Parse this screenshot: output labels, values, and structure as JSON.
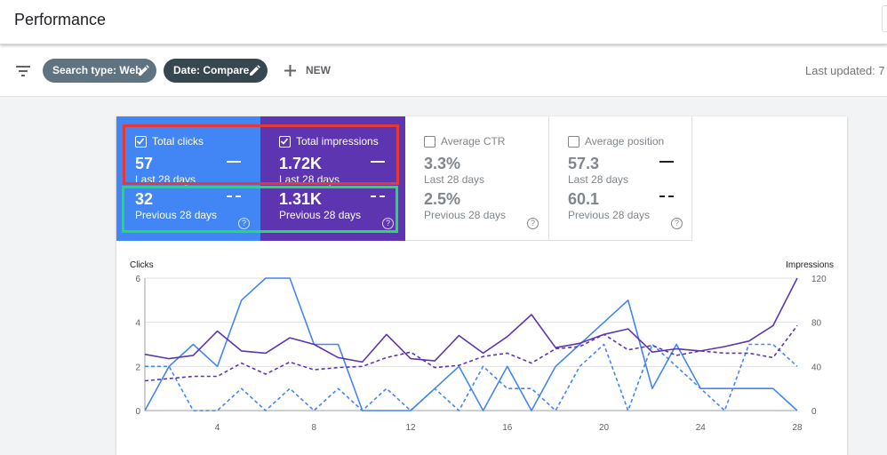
{
  "header": {
    "title": "Performance"
  },
  "filters": {
    "search_type": "Search type: Web",
    "date": "Date: Compare",
    "new_label": "NEW",
    "last_updated": "Last updated: 7"
  },
  "metrics": [
    {
      "label": "Total clicks",
      "checked": true,
      "current": "57",
      "current_period": "Last 28 days",
      "previous": "32",
      "previous_period": "Previous 28 days",
      "color": "#4285f4"
    },
    {
      "label": "Total impressions",
      "checked": true,
      "current": "1.72K",
      "current_period": "Last 28 days",
      "previous": "1.31K",
      "previous_period": "Previous 28 days",
      "color": "#5e35b1"
    },
    {
      "label": "Average CTR",
      "checked": false,
      "current": "3.3%",
      "current_period": "Last 28 days",
      "previous": "2.5%",
      "previous_period": "Previous 28 days",
      "color": "#ffffff"
    },
    {
      "label": "Average position",
      "checked": false,
      "current": "57.3",
      "current_period": "Last 28 days",
      "previous": "60.1",
      "previous_period": "Previous 28 days",
      "color": "#ffffff"
    }
  ],
  "help_glyph": "?",
  "chart_data": {
    "type": "line",
    "ylabel_left": "Clicks",
    "ylabel_right": "Impressions",
    "x": [
      1,
      2,
      3,
      4,
      5,
      6,
      7,
      8,
      9,
      10,
      11,
      12,
      13,
      14,
      15,
      16,
      17,
      18,
      19,
      20,
      21,
      22,
      23,
      24,
      25,
      26,
      27,
      28
    ],
    "x_ticks": [
      "4",
      "8",
      "12",
      "16",
      "20",
      "24",
      "28"
    ],
    "y_left_ticks": [
      "0",
      "2",
      "4",
      "6"
    ],
    "y_right_ticks": [
      "0",
      "40",
      "80",
      "120"
    ],
    "ylim_left": [
      0,
      6
    ],
    "ylim_right": [
      0,
      120
    ],
    "series": [
      {
        "name": "Total clicks",
        "axis": "left",
        "style": "solid",
        "color": "#4285f4",
        "values": [
          0,
          2,
          3,
          2,
          5,
          6,
          6,
          3,
          3,
          0,
          0,
          0,
          1,
          2,
          0,
          2,
          0,
          2,
          3,
          4,
          5,
          1,
          3,
          1,
          1,
          1,
          1,
          0
        ]
      },
      {
        "name": "Total clicks",
        "axis": "left",
        "style": "dashed",
        "color": "#4285f4",
        "values": [
          2,
          2,
          0,
          0,
          1,
          0,
          1,
          0,
          1,
          0,
          1,
          0,
          1,
          0,
          2,
          1,
          1,
          0,
          2,
          3,
          0,
          3,
          2,
          1,
          0,
          3,
          3,
          2
        ]
      },
      {
        "name": "Total impressions",
        "axis": "right",
        "style": "solid",
        "color": "#5e35b1",
        "values": [
          51,
          47,
          50,
          72,
          54,
          52,
          66,
          60,
          48,
          44,
          69,
          47,
          45,
          68,
          52,
          67,
          87,
          57,
          61,
          69,
          74,
          53,
          56,
          54,
          58,
          63,
          77,
          120
        ]
      },
      {
        "name": "Total impressions",
        "axis": "right",
        "style": "dashed",
        "color": "#5e35b1",
        "values": [
          27,
          29,
          31,
          31,
          43,
          33,
          44,
          37,
          39,
          40,
          48,
          53,
          39,
          41,
          49,
          52,
          43,
          56,
          58,
          69,
          55,
          59,
          50,
          54,
          52,
          52,
          48,
          77
        ]
      }
    ]
  }
}
